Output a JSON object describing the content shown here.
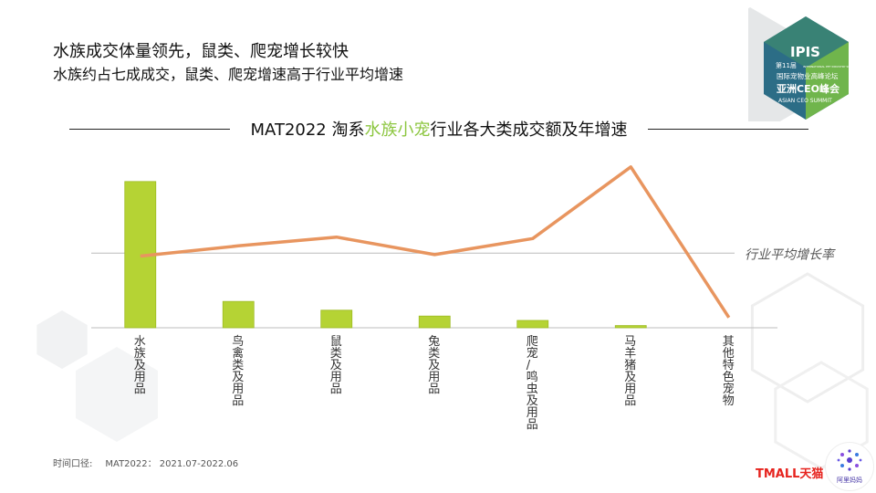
{
  "heading": {
    "title": "水族成交体量领先，鼠类、爬宠增长较快",
    "subtitle": "水族约占七成成交，鼠类、爬宠增速高于行业平均增速"
  },
  "chart_title": {
    "prefix": "MAT2022 淘系",
    "highlight": "水族小宠",
    "suffix": "行业各大类成交额及年增速"
  },
  "chart_data": {
    "type": "bar",
    "categories": [
      "水族及用品",
      "鸟禽类及用品",
      "鼠类及用品",
      "兔类及用品",
      "爬宠/鸣虫及用品",
      "马羊猪及用品",
      "其他特色宠物"
    ],
    "series": [
      {
        "type": "bar",
        "values": [
          100,
          18,
          12,
          8,
          5,
          1.5,
          0
        ],
        "color": "#b5d334"
      },
      {
        "type": "line",
        "values": [
          49,
          56,
          62,
          50,
          61,
          110,
          7
        ],
        "color": "#e8955f"
      }
    ],
    "reference_line": {
      "label": "行业平均增长率",
      "value": 51
    },
    "y_range": [
      0,
      113
    ],
    "grid": false
  },
  "footnote": {
    "label": "时间口径:",
    "value": "MAT2022： 2021.07-2022.06"
  },
  "logos": {
    "ipis": {
      "name": "IPIS",
      "edition": "第11届",
      "tagline": "INTERNATIONAL PET INDUSTRY SUMMIT",
      "forum": "国际宠物业高峰论坛",
      "cn_name": "亚洲CEO峰会",
      "en_name": "ASIAN CEO SUMMIT"
    },
    "tmall": "TMALL天猫",
    "alimama": "阿里妈妈"
  },
  "colors": {
    "bar": "#b5d334",
    "line": "#e8955f",
    "highlight": "#8cc63f",
    "ipis_green": "#7cc242"
  }
}
